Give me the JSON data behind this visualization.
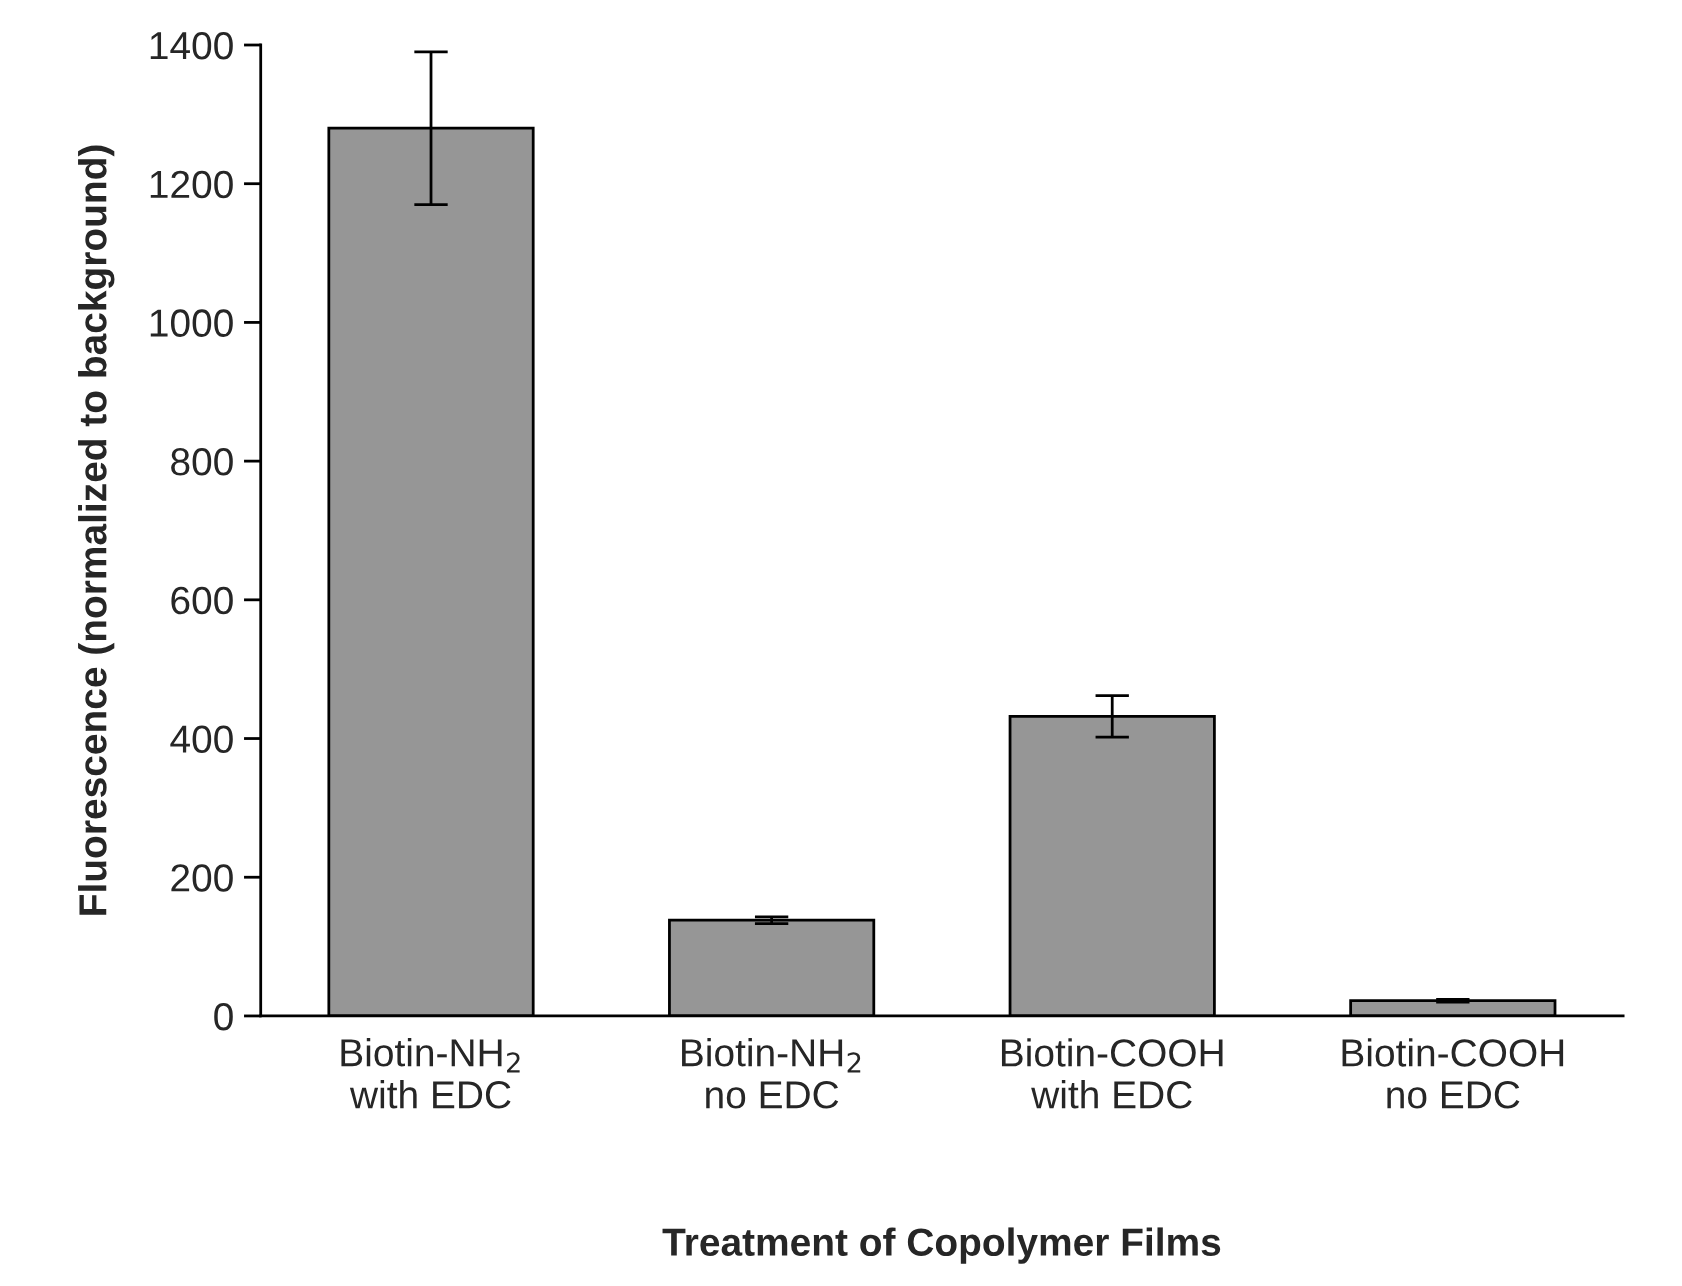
{
  "chart_data": {
    "type": "bar",
    "xlabel": "Treatment of Copolymer Films",
    "ylabel": "Fluorescence (normalized to background)",
    "categories": [
      "Biotin-NH$_{2}$\nwith EDC",
      "Biotin-NH$_{2}$\nno EDC",
      "Biotin-COOH\nwith EDC",
      "Biotin-COOH\nno EDC"
    ],
    "values": [
      1280,
      138,
      432,
      22
    ],
    "errors": [
      110,
      5,
      30,
      2
    ],
    "color": "#969696",
    "ylim": [
      0,
      1400
    ],
    "yticks": [
      0,
      200,
      400,
      600,
      800,
      1000,
      1200,
      1400
    ],
    "grid": false
  }
}
